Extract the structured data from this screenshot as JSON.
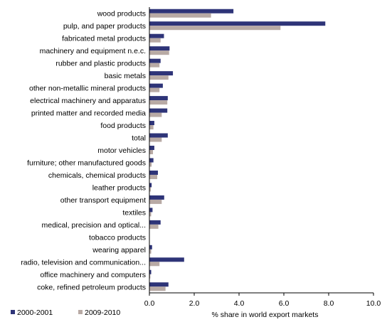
{
  "chart_data": {
    "type": "bar",
    "orientation": "horizontal",
    "title": "",
    "xlabel": "% share in world export markets",
    "ylabel": "",
    "xlim": [
      0,
      10
    ],
    "xticks": [
      "0.0",
      "2.0",
      "4.0",
      "6.0",
      "8.0",
      "10.0"
    ],
    "grid": false,
    "legend": "bottom-left",
    "categories": [
      "wood products",
      "pulp, and paper products",
      "fabricated metal products",
      "machinery and equipment n.e.c.",
      "rubber and plastic products",
      "basic metals",
      "other non-metallic mineral products",
      "electrical machinery and apparatus",
      "printed matter and recorded media",
      "food products",
      "total",
      "motor vehicles",
      "furniture; other manufactured goods",
      "chemicals, chemical products",
      "leather products",
      "other transport equipment",
      "textiles",
      "medical, precision and optical...",
      "tobacco products",
      "wearing apparel",
      "radio, television and communication...",
      "office machinery and computers",
      "coke, refined petroleum products"
    ],
    "series": [
      {
        "name": "2000-2001",
        "color": "#2e3478",
        "values": [
          3.75,
          7.85,
          0.65,
          0.9,
          0.5,
          1.05,
          0.6,
          0.82,
          0.8,
          0.22,
          0.82,
          0.22,
          0.18,
          0.38,
          0.1,
          0.66,
          0.14,
          0.5,
          0.01,
          0.12,
          1.55,
          0.08,
          0.85
        ]
      },
      {
        "name": "2009-2010",
        "color": "#b8aaa5",
        "values": [
          2.75,
          5.85,
          0.5,
          0.88,
          0.45,
          0.85,
          0.45,
          0.8,
          0.55,
          0.18,
          0.55,
          0.16,
          0.1,
          0.35,
          0.06,
          0.55,
          0.08,
          0.4,
          0.0,
          0.08,
          0.45,
          0.04,
          0.72
        ]
      }
    ]
  }
}
